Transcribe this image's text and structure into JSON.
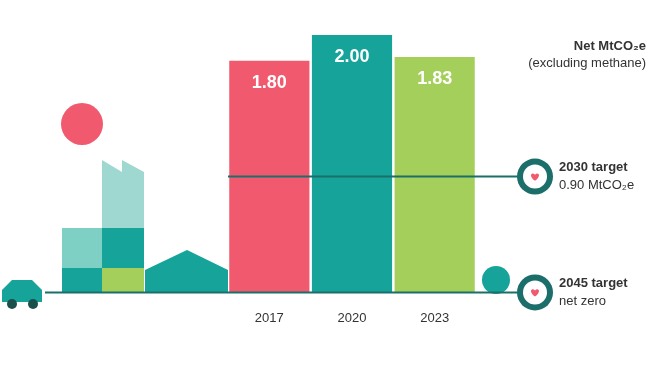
{
  "chart_data": {
    "type": "bar",
    "title": "Net MtCO₂e",
    "subtitle": "(excluding methane)",
    "categories": [
      "2017",
      "2020",
      "2023"
    ],
    "values": [
      1.8,
      2.0,
      1.83
    ],
    "value_labels": [
      "1.80",
      "2.00",
      "1.83"
    ],
    "colors": [
      "#f15a6e",
      "#16a39a",
      "#a5cf5b"
    ],
    "ylim": [
      0,
      2
    ],
    "yticks": [
      0,
      2
    ],
    "grid": false,
    "data_labels": true,
    "tick_labels": "x",
    "annotations": [
      {
        "label": "2030 target",
        "value": 0.9,
        "value_label": "0.90 MtCO₂e"
      },
      {
        "label": "2045 target",
        "value": 0,
        "value_label": "net zero"
      }
    ]
  }
}
